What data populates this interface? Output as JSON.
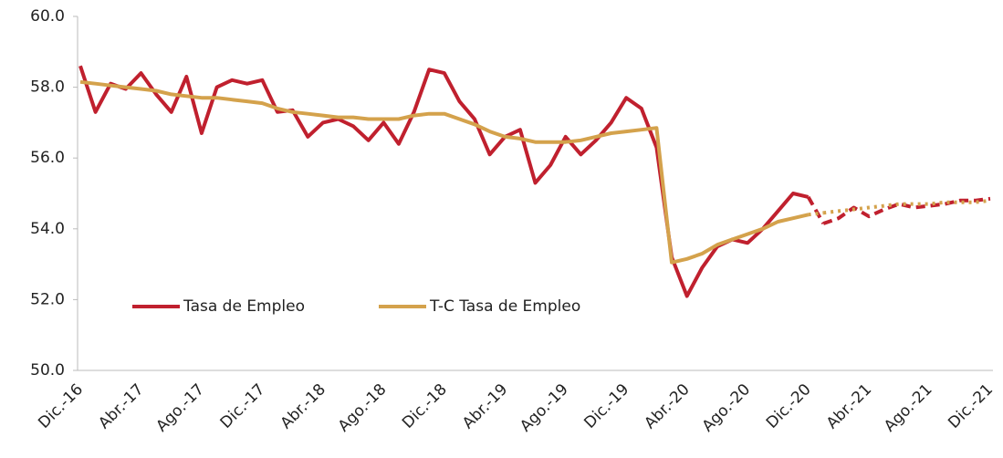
{
  "chart_data": {
    "type": "line",
    "categories": [
      "Dic.-16",
      null,
      null,
      null,
      "Abr.-17",
      null,
      null,
      null,
      "Ago.-17",
      null,
      null,
      null,
      "Dic.-17",
      null,
      null,
      null,
      "Abr.-18",
      null,
      null,
      null,
      "Ago.-18",
      null,
      null,
      null,
      "Dic.-18",
      null,
      null,
      null,
      "Abr.-19",
      null,
      null,
      null,
      "Ago.-19",
      null,
      null,
      null,
      "Dic.-19",
      null,
      null,
      null,
      "Abr.-20",
      null,
      null,
      null,
      "Ago.-20",
      null,
      null,
      null,
      "Dic.-20",
      null,
      null,
      null,
      "Abr.-21",
      null,
      null,
      null,
      "Ago.-21",
      null,
      null,
      null,
      "Dic.-21"
    ],
    "series": [
      {
        "name": "Tasa de Empleo",
        "color": "#c0202e",
        "dash_from_index": 48,
        "values": [
          58.6,
          57.3,
          58.1,
          57.95,
          58.4,
          57.8,
          57.3,
          58.3,
          56.7,
          58.0,
          58.2,
          58.1,
          58.2,
          57.3,
          57.35,
          56.6,
          57.0,
          57.1,
          56.9,
          56.5,
          57.0,
          56.4,
          57.3,
          58.5,
          58.4,
          57.6,
          57.1,
          56.1,
          56.6,
          56.8,
          55.3,
          55.8,
          56.6,
          56.1,
          56.5,
          57.0,
          57.7,
          57.4,
          56.3,
          53.2,
          52.1,
          52.9,
          53.5,
          53.7,
          53.6,
          54.0,
          54.5,
          55.0,
          54.9,
          54.15,
          54.3,
          54.6,
          54.35,
          54.55,
          54.7,
          54.6,
          54.65,
          54.7,
          54.8,
          54.8,
          54.85
        ]
      },
      {
        "name": "T-C Tasa de Empleo",
        "color": "#d4a24c",
        "dash_from_index": 48,
        "values": [
          58.15,
          58.1,
          58.05,
          58.0,
          57.95,
          57.9,
          57.8,
          57.75,
          57.7,
          57.7,
          57.65,
          57.6,
          57.55,
          57.4,
          57.3,
          57.25,
          57.2,
          57.15,
          57.15,
          57.1,
          57.1,
          57.1,
          57.2,
          57.25,
          57.25,
          57.1,
          56.95,
          56.75,
          56.6,
          56.55,
          56.45,
          56.45,
          56.45,
          56.5,
          56.6,
          56.7,
          56.75,
          56.8,
          56.85,
          53.05,
          53.15,
          53.3,
          53.55,
          53.7,
          53.85,
          54.0,
          54.2,
          54.3,
          54.4,
          54.45,
          54.5,
          54.55,
          54.6,
          54.65,
          54.7,
          54.7,
          54.7,
          54.75,
          54.75,
          54.75,
          54.8
        ]
      }
    ],
    "ylim": [
      50,
      60
    ],
    "yticks": [
      {
        "value": 50,
        "label": "50.0"
      },
      {
        "value": 52,
        "label": "52.0"
      },
      {
        "value": 54,
        "label": "54.0"
      },
      {
        "value": 56,
        "label": "56.0"
      },
      {
        "value": 58,
        "label": "58.0"
      },
      {
        "value": 60,
        "label": "60.0"
      }
    ],
    "grid": false,
    "legend": "lower-left"
  }
}
